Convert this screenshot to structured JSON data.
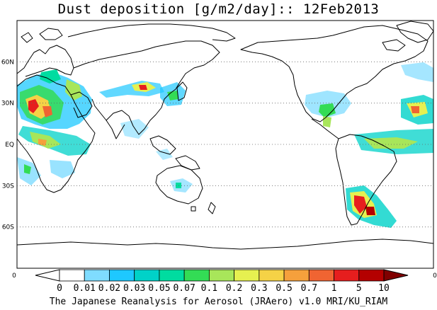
{
  "title": "Dust deposition [g/m2/day]:: 12Feb2013",
  "credit": "The Japanese Reanalysis for Aerosol (JRAero) v1.0 MRI/KU_RIAM",
  "map": {
    "projection": "equirectangular",
    "lon_center": 150,
    "lat_range": [
      -90,
      90
    ],
    "lat_ticks": [
      {
        "label": "60N",
        "lat": 60
      },
      {
        "label": "30N",
        "lat": 30
      },
      {
        "label": "EQ",
        "lat": 0
      },
      {
        "label": "30S",
        "lat": -30
      },
      {
        "label": "60S",
        "lat": -60
      }
    ],
    "edge_labels": {
      "left": "0",
      "right": "0"
    }
  },
  "colorbar": {
    "unit": "g/m2/day",
    "labels": [
      "0",
      "0.01",
      "0.02",
      "0.03",
      "0.05",
      "0.07",
      "0.1",
      "0.2",
      "0.3",
      "0.5",
      "0.7",
      "1",
      "5",
      "10"
    ],
    "colors": [
      "#ffffff",
      "#ffffff",
      "#7fdcff",
      "#1ec8ff",
      "#00d2c8",
      "#00dca0",
      "#33dc55",
      "#a8e65a",
      "#e6f050",
      "#f5d246",
      "#f5a03c",
      "#f06432",
      "#e61e1e",
      "#b40000",
      "#800000"
    ]
  }
}
